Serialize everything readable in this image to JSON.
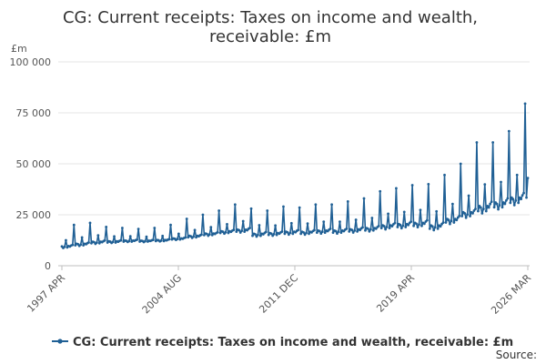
{
  "chart_data": {
    "type": "line",
    "title_line1": "CG: Current receipts: Taxes on income and wealth,",
    "title_line2": "receivable: £m",
    "unit_label": "£m",
    "ylim": [
      0,
      100000
    ],
    "y_ticks": [
      {
        "value": 0,
        "label": "0"
      },
      {
        "value": 25000,
        "label": "25 000"
      },
      {
        "value": 50000,
        "label": "50 000"
      },
      {
        "value": 75000,
        "label": "75 000"
      },
      {
        "value": 100000,
        "label": "100 000"
      }
    ],
    "x_start": "1997 APR",
    "x_end": "2026 MAR",
    "x_ticks": [
      "1997 APR",
      "2004 AUG",
      "2011 DEC",
      "2019 APR",
      "2026 MAR"
    ],
    "grid": true,
    "legend_position": "bottom",
    "series": [
      {
        "name": "CG: Current receipts: Taxes on income and wealth, receivable: £m",
        "color": "#206095",
        "frequency": "monthly",
        "annual_points": [
          {
            "year": 1997,
            "base": 8500,
            "peak": 18000
          },
          {
            "year": 1998,
            "base": 9500,
            "peak": 20000
          },
          {
            "year": 1999,
            "base": 10500,
            "peak": 21000
          },
          {
            "year": 2000,
            "base": 11000,
            "peak": 19000
          },
          {
            "year": 2001,
            "base": 11500,
            "peak": 18500
          },
          {
            "year": 2002,
            "base": 11500,
            "peak": 18000
          },
          {
            "year": 2003,
            "base": 11800,
            "peak": 18500
          },
          {
            "year": 2004,
            "base": 12500,
            "peak": 20000
          },
          {
            "year": 2005,
            "base": 13500,
            "peak": 23000
          },
          {
            "year": 2006,
            "base": 14500,
            "peak": 25000
          },
          {
            "year": 2007,
            "base": 15500,
            "peak": 27000
          },
          {
            "year": 2008,
            "base": 16000,
            "peak": 30000
          },
          {
            "year": 2009,
            "base": 14000,
            "peak": 28000
          },
          {
            "year": 2010,
            "base": 14500,
            "peak": 27000
          },
          {
            "year": 2011,
            "base": 15000,
            "peak": 29000
          },
          {
            "year": 2012,
            "base": 15000,
            "peak": 28500
          },
          {
            "year": 2013,
            "base": 15500,
            "peak": 30000
          },
          {
            "year": 2014,
            "base": 15500,
            "peak": 30000
          },
          {
            "year": 2015,
            "base": 16000,
            "peak": 31500
          },
          {
            "year": 2016,
            "base": 16500,
            "peak": 33000
          },
          {
            "year": 2017,
            "base": 17500,
            "peak": 36500
          },
          {
            "year": 2018,
            "base": 18000,
            "peak": 38000
          },
          {
            "year": 2019,
            "base": 18500,
            "peak": 39500
          },
          {
            "year": 2020,
            "base": 17000,
            "peak": 40000
          },
          {
            "year": 2021,
            "base": 20000,
            "peak": 44500
          },
          {
            "year": 2022,
            "base": 23000,
            "peak": 50000
          },
          {
            "year": 2023,
            "base": 25000,
            "peak": 60500
          },
          {
            "year": 2024,
            "base": 27000,
            "peak": 60500
          },
          {
            "year": 2025,
            "base": 29000,
            "peak": 66000
          },
          {
            "year": 2026,
            "base": 31000,
            "peak": 79500
          }
        ],
        "last_value": 43000
      }
    ],
    "source_label": "Source:"
  }
}
